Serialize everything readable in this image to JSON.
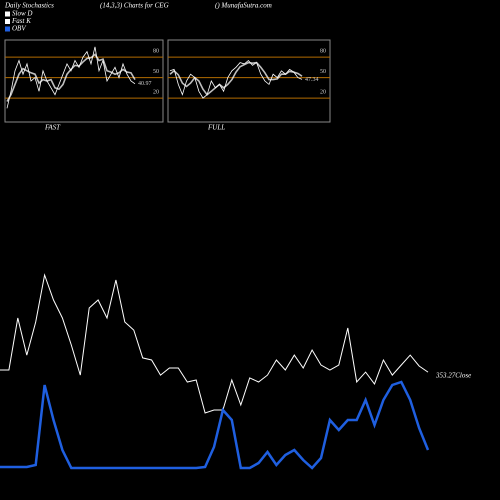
{
  "header": {
    "title": "Daily Stochastics",
    "subtitle": "(14,3,3) Charts for CEG",
    "source": "() MunafaSutra.com"
  },
  "legend": [
    {
      "name": "Slow  D",
      "color": "#ffffff"
    },
    {
      "name": "Fast K",
      "color": "#ffffff"
    },
    {
      "name": "OBV",
      "color": "#1f5fe0"
    }
  ],
  "chart_data": [
    {
      "type": "line",
      "title": "FAST",
      "ylim": [
        -15,
        105
      ],
      "yticks": [
        80,
        50,
        20
      ],
      "band_color": "#b36b00",
      "categories": [
        null,
        null,
        null,
        null,
        null,
        null,
        null,
        null,
        null,
        null,
        null,
        null,
        null,
        null,
        null,
        null,
        null,
        null,
        null,
        null,
        null,
        null,
        null,
        null,
        null,
        null,
        null,
        null,
        null,
        null,
        null,
        null,
        null
      ],
      "series": [
        {
          "name": "Fast K",
          "color": "#ffffff",
          "values": [
            5,
            30,
            60,
            75,
            55,
            70,
            45,
            50,
            30,
            60,
            45,
            35,
            25,
            40,
            55,
            70,
            60,
            75,
            65,
            80,
            88,
            70,
            95,
            60,
            75,
            45,
            55,
            65,
            50,
            70,
            55,
            45,
            40.97
          ]
        },
        {
          "name": "Slow  D",
          "color": "#ffffff",
          "values": [
            15,
            25,
            40,
            55,
            63,
            60,
            57,
            55,
            42,
            47,
            45,
            47,
            35,
            33,
            40,
            55,
            62,
            68,
            67,
            73,
            78,
            79,
            84,
            75,
            77,
            60,
            58,
            55,
            57,
            62,
            58,
            57,
            47
          ]
        }
      ],
      "value_label": "40.97"
    },
    {
      "type": "line",
      "title": "FULL",
      "ylim": [
        -15,
        105
      ],
      "yticks": [
        80,
        50,
        20
      ],
      "band_color": "#b36b00",
      "categories": [
        null,
        null,
        null,
        null,
        null,
        null,
        null,
        null,
        null,
        null,
        null,
        null,
        null,
        null,
        null,
        null,
        null,
        null,
        null,
        null,
        null,
        null,
        null,
        null,
        null,
        null,
        null,
        null,
        null,
        null,
        null,
        null,
        null
      ],
      "series": [
        {
          "name": "Fast K",
          "color": "#ffffff",
          "values": [
            60,
            62,
            40,
            25,
            45,
            55,
            50,
            30,
            20,
            25,
            45,
            35,
            40,
            30,
            50,
            60,
            65,
            72,
            70,
            75,
            68,
            72,
            55,
            45,
            40,
            55,
            50,
            60,
            55,
            62,
            58,
            50,
            47.34
          ]
        },
        {
          "name": "Slow  D",
          "color": "#ffffff",
          "values": [
            55,
            60,
            54,
            42,
            37,
            42,
            50,
            45,
            33,
            25,
            30,
            35,
            40,
            35,
            40,
            47,
            58,
            66,
            69,
            72,
            71,
            72,
            65,
            57,
            47,
            47,
            48,
            55,
            55,
            59,
            58,
            56,
            52
          ]
        }
      ],
      "value_label": "47.34"
    },
    {
      "type": "line",
      "ylim": [
        295,
        420
      ],
      "y2lim": [
        0,
        105
      ],
      "categories": [
        null,
        null,
        null,
        null,
        null,
        null,
        null,
        null,
        null,
        null,
        null,
        null,
        null,
        null,
        null,
        null,
        null,
        null,
        null,
        null,
        null,
        null,
        null,
        null,
        null,
        null,
        null,
        null,
        null,
        null,
        null,
        null,
        null,
        null,
        null,
        null,
        null,
        null,
        null,
        null,
        null,
        null,
        null,
        null,
        null,
        null,
        null,
        null,
        null
      ],
      "series": [
        {
          "name": "Close",
          "color": "#ffffff",
          "values": [
            354.5,
            354.5,
            385.5,
            363.4,
            383.1,
            411.1,
            396.2,
            385.5,
            369.4,
            351.5,
            391.4,
            396.2,
            385.5,
            408.1,
            383.1,
            378.3,
            361.7,
            360.5,
            351.5,
            355.7,
            355.7,
            347.4,
            348.6,
            328.9,
            330.7,
            330.7,
            348.6,
            333.7,
            349.8,
            347.4,
            351.5,
            360.5,
            354.5,
            363.4,
            355.7,
            366.4,
            357.5,
            354.5,
            357.5,
            379.5,
            347.4,
            353.3,
            346.2,
            360.5,
            351.5,
            357.5,
            363.4,
            356.9,
            353.27
          ],
          "value_label": "353.27Close"
        },
        {
          "name": "OBV",
          "color": "#1f5fe0",
          "axis": "y2",
          "values": [
            8,
            8,
            8,
            8,
            10,
            90,
            55,
            25,
            7,
            7,
            7,
            7,
            7,
            7,
            7,
            7,
            7,
            7,
            7,
            7,
            7,
            7,
            7,
            8,
            28,
            65,
            55,
            7,
            7,
            12,
            23,
            10,
            20,
            25,
            15,
            7,
            17,
            55,
            45,
            55,
            55,
            75,
            50,
            75,
            90,
            93,
            75,
            47,
            25
          ]
        }
      ]
    }
  ]
}
